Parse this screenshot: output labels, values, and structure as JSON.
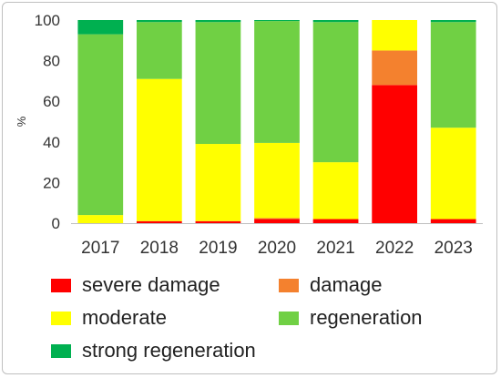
{
  "chart_data": {
    "type": "bar",
    "stacked": true,
    "categories": [
      "2017",
      "2018",
      "2019",
      "2020",
      "2021",
      "2022",
      "2023"
    ],
    "ylabel": "%",
    "ylim": [
      0,
      100
    ],
    "yticks": [
      0,
      20,
      40,
      60,
      80,
      100
    ],
    "grid": false,
    "legend_position": "bottom",
    "series": [
      {
        "name": "severe damage",
        "color": "#FF0000",
        "values": [
          0,
          1,
          1,
          2,
          2,
          68,
          2
        ]
      },
      {
        "name": "damage",
        "color": "#F4812E",
        "values": [
          0,
          0,
          0,
          0.5,
          0,
          17,
          0
        ]
      },
      {
        "name": "moderate",
        "color": "#FFFF00",
        "values": [
          4,
          70,
          38,
          37,
          28,
          15,
          45
        ]
      },
      {
        "name": "regeneration",
        "color": "#70D044",
        "values": [
          89,
          28,
          60,
          60,
          69,
          0,
          52
        ]
      },
      {
        "name": "strong regeneration",
        "color": "#00B050",
        "values": [
          7,
          1,
          1,
          0.5,
          1,
          0,
          1
        ]
      }
    ]
  }
}
